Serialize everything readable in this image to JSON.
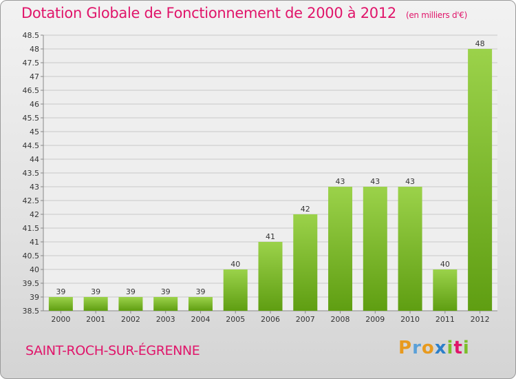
{
  "header": {
    "title": "Dotation Globale de Fonctionnement de 2000 à 2012",
    "subtitle": "(en milliers d'€)"
  },
  "footer": {
    "commune": "SAINT-ROCH-SUR-ÉGRENNE",
    "logo_letters": [
      "P",
      "r",
      "o",
      "x",
      "i",
      "t",
      "i"
    ]
  },
  "colors": {
    "title": "#e0156a",
    "bar_top": "#9bd24a",
    "bar_bottom": "#5f9e12",
    "grid": "#c8c8c8",
    "axis": "#888888",
    "text": "#333333"
  },
  "chart_data": {
    "type": "bar",
    "title": "Dotation Globale de Fonctionnement de 2000 à 2012",
    "subtitle": "(en milliers d'€)",
    "xlabel": "",
    "ylabel": "",
    "categories": [
      "2000",
      "2001",
      "2002",
      "2003",
      "2004",
      "2005",
      "2006",
      "2007",
      "2008",
      "2009",
      "2010",
      "2011",
      "2012"
    ],
    "values": [
      39,
      39,
      39,
      39,
      39,
      40,
      41,
      42,
      43,
      43,
      43,
      40,
      48
    ],
    "ylim": [
      38.5,
      48.5
    ],
    "yticks": [
      "38.5",
      "39",
      "39.5",
      "40",
      "40.5",
      "41",
      "41.5",
      "42",
      "42.5",
      "43",
      "43.5",
      "44",
      "44.5",
      "45",
      "45.5",
      "46",
      "46.5",
      "47",
      "47.5",
      "48",
      "48.5"
    ],
    "grid": true,
    "legend": "none"
  }
}
